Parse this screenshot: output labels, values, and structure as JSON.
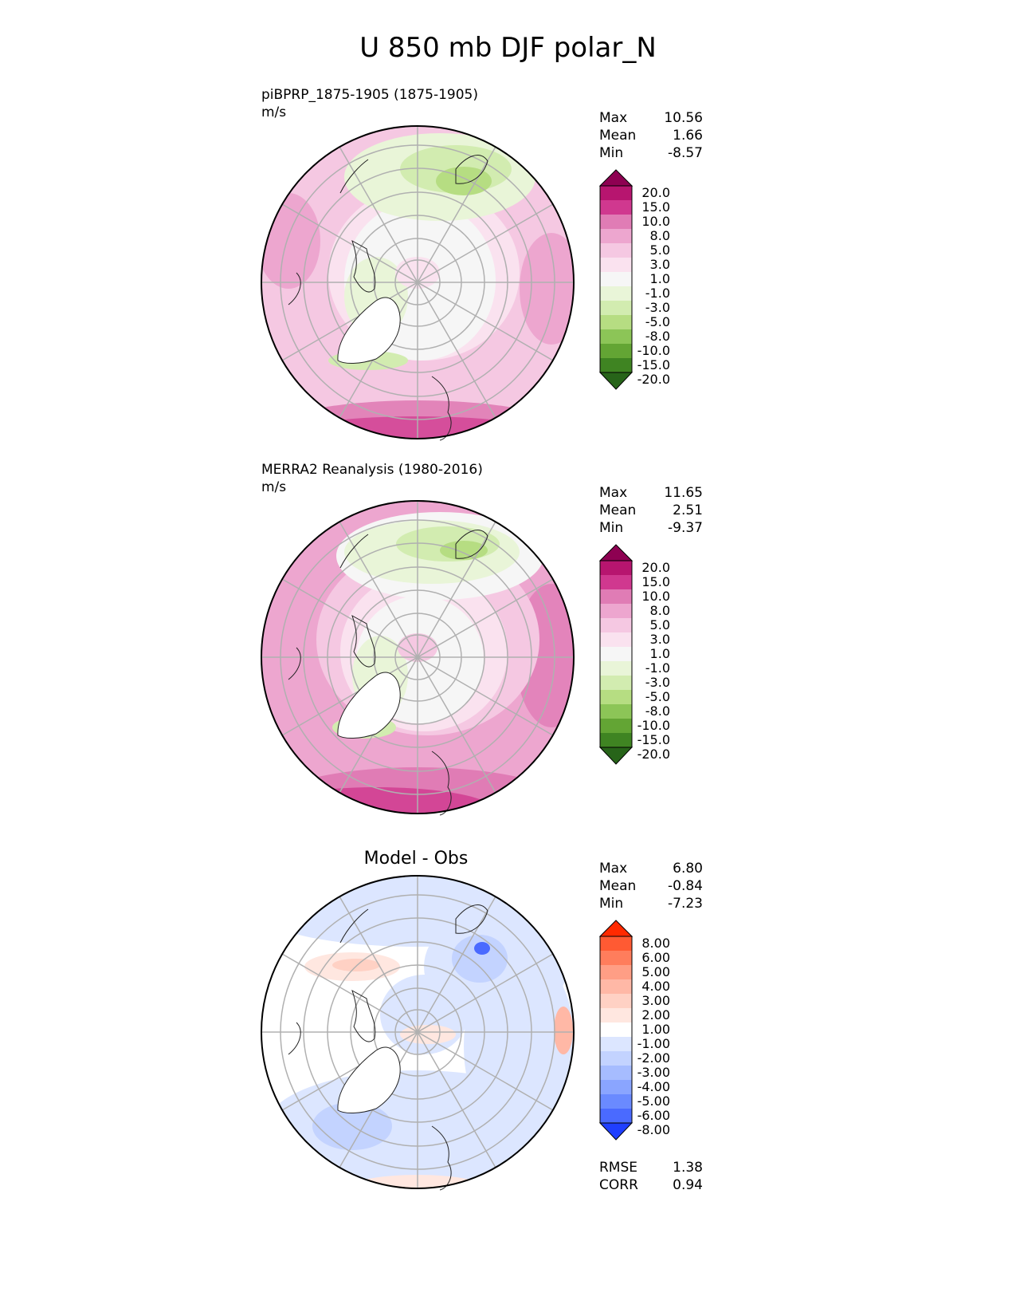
{
  "title": "U 850 mb DJF polar_N",
  "panels": [
    {
      "title": "piBPRP_1875-1905 (1875-1905)",
      "units": "m/s",
      "stats": [
        {
          "label": "Max",
          "value": "10.56"
        },
        {
          "label": "Mean",
          "value": "1.66"
        },
        {
          "label": "Min",
          "value": "-8.57"
        }
      ],
      "colorbar": {
        "labels": [
          "20.0",
          "15.0",
          "10.0",
          "8.0",
          "5.0",
          "3.0",
          "1.0",
          "-1.0",
          "-3.0",
          "-5.0",
          "-8.0",
          "-10.0",
          "-15.0",
          "-20.0"
        ],
        "colors": [
          "#8e0152",
          "#b7156f",
          "#d0388f",
          "#e07cb5",
          "#eda6cf",
          "#f5c8e2",
          "#fae2ef",
          "#f6f6f6",
          "#e9f5d8",
          "#d2ecb0",
          "#b6dd82",
          "#8cc557",
          "#63a534",
          "#3f8422",
          "#276419"
        ]
      }
    },
    {
      "title": "MERRA2 Reanalysis (1980-2016)",
      "units": "m/s",
      "stats": [
        {
          "label": "Max",
          "value": "11.65"
        },
        {
          "label": "Mean",
          "value": "2.51"
        },
        {
          "label": "Min",
          "value": "-9.37"
        }
      ],
      "colorbar": {
        "labels": [
          "20.0",
          "15.0",
          "10.0",
          "8.0",
          "5.0",
          "3.0",
          "1.0",
          "-1.0",
          "-3.0",
          "-5.0",
          "-8.0",
          "-10.0",
          "-15.0",
          "-20.0"
        ],
        "colors": [
          "#8e0152",
          "#b7156f",
          "#d0388f",
          "#e07cb5",
          "#eda6cf",
          "#f5c8e2",
          "#fae2ef",
          "#f6f6f6",
          "#e9f5d8",
          "#d2ecb0",
          "#b6dd82",
          "#8cc557",
          "#63a534",
          "#3f8422",
          "#276419"
        ]
      }
    },
    {
      "title": "Model - Obs",
      "stats": [
        {
          "label": "Max",
          "value": "6.80"
        },
        {
          "label": "Mean",
          "value": "-0.84"
        },
        {
          "label": "Min",
          "value": "-7.23"
        }
      ],
      "colorbar": {
        "labels": [
          "8.00",
          "6.00",
          "5.00",
          "4.00",
          "3.00",
          "2.00",
          "1.00",
          "-1.00",
          "-2.00",
          "-3.00",
          "-4.00",
          "-5.00",
          "-6.00",
          "-8.00"
        ],
        "colors": [
          "#ff2a00",
          "#ff5a33",
          "#ff7d5c",
          "#ff9e85",
          "#ffb8a6",
          "#ffd1c4",
          "#ffe7e0",
          "#ffffff",
          "#dce6ff",
          "#c3d3ff",
          "#a6bcff",
          "#8aa5ff",
          "#6a8aff",
          "#4a6aff",
          "#1f3fff"
        ]
      },
      "footer": [
        {
          "label": "RMSE",
          "value": "1.38"
        },
        {
          "label": "CORR",
          "value": "0.94"
        }
      ]
    }
  ]
}
